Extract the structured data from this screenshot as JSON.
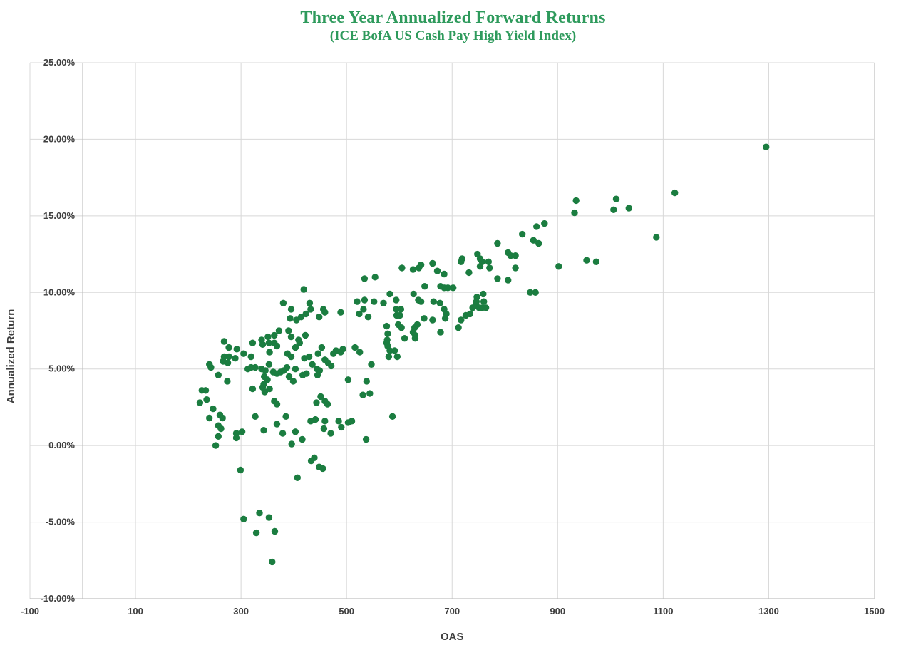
{
  "chart_data": {
    "type": "scatter",
    "title": "Three Year Annualized Forward Returns",
    "subtitle": "(ICE BofA US Cash Pay High Yield Index)",
    "xlabel": "OAS",
    "ylabel": "Annualized Return",
    "xlim": [
      -100,
      1500
    ],
    "ylim": [
      -10,
      25
    ],
    "x_ticks": [
      -100,
      100,
      300,
      500,
      700,
      900,
      1100,
      1300,
      1500
    ],
    "x_tick_labels": [
      "-100",
      "100",
      "300",
      "500",
      "700",
      "900",
      "1100",
      "1300",
      "1500"
    ],
    "y_ticks": [
      25,
      20,
      15,
      10,
      5,
      0,
      -5,
      -10
    ],
    "y_tick_labels": [
      "25.00%",
      "20.00%",
      "15.00%",
      "10.00%",
      "5.00%",
      "0.00%",
      "-5.00%",
      "-10.00%"
    ],
    "grid": true,
    "legend": "none",
    "value_axis_crosses_at_x": 0,
    "marker_color": "#1b7d40",
    "grid_color": "#d8d8d8",
    "axis_line_color": "#c0c0c0",
    "points": [
      [
        380,
        9.3
      ],
      [
        430,
        9.3
      ],
      [
        520,
        9.4
      ],
      [
        552,
        9.4
      ],
      [
        570,
        9.3
      ],
      [
        395,
        8.9
      ],
      [
        432,
        8.9
      ],
      [
        456,
        8.9
      ],
      [
        489,
        8.7
      ],
      [
        532,
        8.9
      ],
      [
        524,
        8.6
      ],
      [
        541,
        8.4
      ],
      [
        393,
        8.3
      ],
      [
        405,
        8.2
      ],
      [
        414,
        8.4
      ],
      [
        423,
        8.6
      ],
      [
        448,
        8.4
      ],
      [
        459,
        8.7
      ],
      [
        372,
        7.5
      ],
      [
        390,
        7.5
      ],
      [
        363,
        7.2
      ],
      [
        351,
        7.1
      ],
      [
        339,
        6.9
      ],
      [
        341,
        6.6
      ],
      [
        395,
        7.1
      ],
      [
        409,
        6.9
      ],
      [
        422,
        7.2
      ],
      [
        268,
        6.8
      ],
      [
        322,
        6.7
      ],
      [
        353,
        6.7
      ],
      [
        363,
        6.7
      ],
      [
        368,
        6.5
      ],
      [
        277,
        6.4
      ],
      [
        292,
        6.3
      ],
      [
        305,
        6.0
      ],
      [
        403,
        6.4
      ],
      [
        411,
        6.7
      ],
      [
        453,
        6.4
      ],
      [
        480,
        6.2
      ],
      [
        493,
        6.3
      ],
      [
        516,
        6.4
      ],
      [
        525,
        6.1
      ],
      [
        268,
        5.8
      ],
      [
        277,
        5.8
      ],
      [
        289,
        5.7
      ],
      [
        319,
        5.8
      ],
      [
        354,
        6.1
      ],
      [
        388,
        6.0
      ],
      [
        395,
        5.8
      ],
      [
        420,
        5.7
      ],
      [
        429,
        5.8
      ],
      [
        446,
        6.0
      ],
      [
        459,
        5.6
      ],
      [
        475,
        6.0
      ],
      [
        489,
        6.1
      ],
      [
        266,
        5.5
      ],
      [
        275,
        5.4
      ],
      [
        240,
        5.3
      ],
      [
        243,
        5.1
      ],
      [
        313,
        5.0
      ],
      [
        319,
        5.1
      ],
      [
        327,
        5.1
      ],
      [
        339,
        5.0
      ],
      [
        346,
        4.9
      ],
      [
        353,
        5.3
      ],
      [
        361,
        4.8
      ],
      [
        368,
        4.7
      ],
      [
        375,
        4.8
      ],
      [
        381,
        4.9
      ],
      [
        387,
        5.1
      ],
      [
        403,
        5.0
      ],
      [
        417,
        4.6
      ],
      [
        424,
        4.7
      ],
      [
        435,
        5.3
      ],
      [
        444,
        5.0
      ],
      [
        449,
        4.9
      ],
      [
        465,
        5.4
      ],
      [
        471,
        5.2
      ],
      [
        547,
        5.3
      ],
      [
        257,
        4.6
      ],
      [
        344,
        4.5
      ],
      [
        350,
        4.3
      ],
      [
        391,
        4.5
      ],
      [
        399,
        4.2
      ],
      [
        445,
        4.6
      ],
      [
        274,
        4.2
      ],
      [
        343,
        4.0
      ],
      [
        503,
        4.3
      ],
      [
        538,
        4.2
      ],
      [
        226,
        3.6
      ],
      [
        233,
        3.6
      ],
      [
        322,
        3.7
      ],
      [
        341,
        3.8
      ],
      [
        345,
        3.5
      ],
      [
        354,
        3.7
      ],
      [
        544,
        3.4
      ],
      [
        531,
        3.3
      ],
      [
        222,
        2.8
      ],
      [
        235,
        3.0
      ],
      [
        451,
        3.2
      ],
      [
        459,
        2.9
      ],
      [
        443,
        2.8
      ],
      [
        464,
        2.7
      ],
      [
        363,
        2.9
      ],
      [
        368,
        2.7
      ],
      [
        247,
        2.4
      ],
      [
        240,
        1.8
      ],
      [
        260,
        2.0
      ],
      [
        265,
        1.8
      ],
      [
        327,
        1.9
      ],
      [
        385,
        1.9
      ],
      [
        432,
        1.6
      ],
      [
        441,
        1.7
      ],
      [
        459,
        1.6
      ],
      [
        485,
        1.6
      ],
      [
        503,
        1.5
      ],
      [
        510,
        1.6
      ],
      [
        257,
        1.3
      ],
      [
        262,
        1.1
      ],
      [
        368,
        1.4
      ],
      [
        343,
        1.0
      ],
      [
        457,
        1.1
      ],
      [
        470,
        0.8
      ],
      [
        490,
        1.2
      ],
      [
        291,
        0.8
      ],
      [
        302,
        0.9
      ],
      [
        379,
        0.8
      ],
      [
        403,
        0.9
      ],
      [
        257,
        0.6
      ],
      [
        291,
        0.5
      ],
      [
        416,
        0.4
      ],
      [
        537,
        0.4
      ],
      [
        252,
        0.0
      ],
      [
        396,
        0.1
      ],
      [
        594,
        8.9
      ],
      [
        603,
        8.9
      ],
      [
        641,
        9.4
      ],
      [
        665,
        9.4
      ],
      [
        677,
        9.3
      ],
      [
        685,
        8.9
      ],
      [
        689,
        8.6
      ],
      [
        595,
        8.5
      ],
      [
        601,
        8.5
      ],
      [
        647,
        8.3
      ],
      [
        663,
        8.2
      ],
      [
        687,
        8.3
      ],
      [
        576,
        7.8
      ],
      [
        598,
        7.9
      ],
      [
        604,
        7.7
      ],
      [
        629,
        7.7
      ],
      [
        634,
        7.9
      ],
      [
        578,
        7.3
      ],
      [
        626,
        7.4
      ],
      [
        630,
        7.2
      ],
      [
        678,
        7.4
      ],
      [
        610,
        7.0
      ],
      [
        630,
        7.0
      ],
      [
        577,
        6.9
      ],
      [
        576,
        6.7
      ],
      [
        578,
        6.5
      ],
      [
        582,
        6.2
      ],
      [
        591,
        6.2
      ],
      [
        580,
        5.8
      ],
      [
        596,
        5.8
      ],
      [
        712,
        7.7
      ],
      [
        717,
        8.2
      ],
      [
        726,
        8.5
      ],
      [
        734,
        8.6
      ],
      [
        739,
        9.0
      ],
      [
        745,
        9.2
      ],
      [
        751,
        9.0
      ],
      [
        757,
        9.0
      ],
      [
        764,
        9.0
      ],
      [
        746,
        9.4
      ],
      [
        760,
        9.4
      ],
      [
        587,
        1.9
      ],
      [
        935,
        16.0
      ],
      [
        932,
        15.2
      ],
      [
        875,
        14.5
      ],
      [
        860,
        14.3
      ],
      [
        833,
        13.8
      ],
      [
        854,
        13.4
      ],
      [
        864,
        13.2
      ],
      [
        786,
        13.2
      ],
      [
        806,
        12.6
      ],
      [
        811,
        12.4
      ],
      [
        820,
        12.4
      ],
      [
        719,
        12.2
      ],
      [
        717,
        12.0
      ],
      [
        748,
        12.5
      ],
      [
        753,
        12.2
      ],
      [
        757,
        12.0
      ],
      [
        753,
        11.7
      ],
      [
        769,
        12.0
      ],
      [
        771,
        11.6
      ],
      [
        605,
        11.6
      ],
      [
        626,
        11.5
      ],
      [
        637,
        11.6
      ],
      [
        641,
        11.8
      ],
      [
        663,
        11.9
      ],
      [
        672,
        11.4
      ],
      [
        685,
        11.2
      ],
      [
        732,
        11.3
      ],
      [
        786,
        10.9
      ],
      [
        806,
        10.8
      ],
      [
        820,
        11.6
      ],
      [
        902,
        11.7
      ],
      [
        955,
        12.1
      ],
      [
        648,
        10.4
      ],
      [
        678,
        10.4
      ],
      [
        685,
        10.3
      ],
      [
        692,
        10.3
      ],
      [
        702,
        10.3
      ],
      [
        848,
        10.0
      ],
      [
        858,
        10.0
      ],
      [
        582,
        9.9
      ],
      [
        627,
        9.9
      ],
      [
        636,
        9.5
      ],
      [
        594,
        9.5
      ],
      [
        747,
        9.7
      ],
      [
        759,
        9.9
      ],
      [
        1295,
        19.5
      ],
      [
        1011,
        16.1
      ],
      [
        1006,
        15.4
      ],
      [
        1035,
        15.5
      ],
      [
        1122,
        16.5
      ],
      [
        1087,
        13.6
      ],
      [
        973,
        12.0
      ],
      [
        419,
        10.2
      ],
      [
        534,
        10.9
      ],
      [
        554,
        11.0
      ],
      [
        534,
        9.5
      ],
      [
        299,
        -1.6
      ],
      [
        433,
        -1.0
      ],
      [
        439,
        -0.8
      ],
      [
        448,
        -1.4
      ],
      [
        455,
        -1.5
      ],
      [
        407,
        -2.1
      ],
      [
        335,
        -4.4
      ],
      [
        353,
        -4.7
      ],
      [
        305,
        -4.8
      ],
      [
        329,
        -5.7
      ],
      [
        364,
        -5.6
      ],
      [
        359,
        -7.6
      ]
    ]
  }
}
